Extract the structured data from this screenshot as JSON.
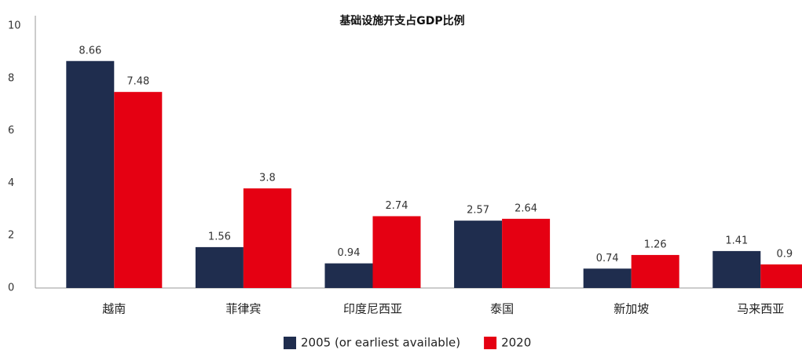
{
  "chart_data": {
    "type": "bar",
    "title": "基础设施开支占GDP比例",
    "categories": [
      "越南",
      "菲律宾",
      "印度尼西亚",
      "泰国",
      "新加坡",
      "马来西亚"
    ],
    "series": [
      {
        "name": "2005 (or earliest available)",
        "color": "#1f2d4e",
        "values": [
          8.66,
          1.56,
          0.94,
          2.57,
          0.74,
          1.41
        ]
      },
      {
        "name": "2020",
        "color": "#e50012",
        "values": [
          7.48,
          3.8,
          2.74,
          2.64,
          1.26,
          0.9
        ]
      }
    ],
    "ylim": [
      0,
      10
    ],
    "yticks": [
      0,
      2,
      4,
      6,
      8,
      10
    ],
    "grid": false,
    "legend": "bottom"
  }
}
